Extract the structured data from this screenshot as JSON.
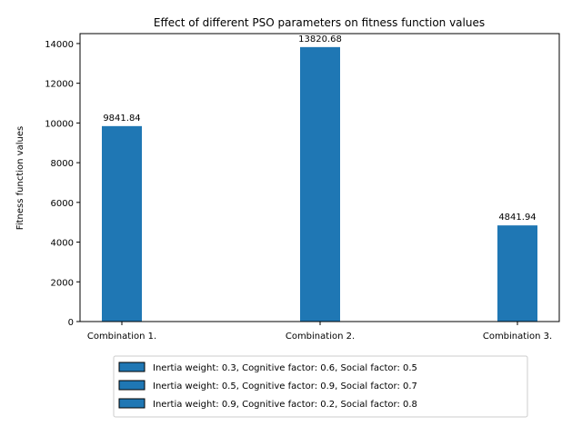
{
  "chart_data": {
    "type": "bar",
    "title": "Effect of different PSO parameters on fitness function values",
    "xlabel": "",
    "ylabel": "Fitness function values",
    "categories": [
      "Combination 1.",
      "Combination 2.",
      "Combination 3."
    ],
    "values": [
      9841.84,
      13820.68,
      4841.94
    ],
    "data_labels": [
      "9841.84",
      "13820.68",
      "4841.94"
    ],
    "ylim": [
      0,
      14500
    ],
    "yticks": [
      0,
      2000,
      4000,
      6000,
      8000,
      10000,
      12000,
      14000
    ],
    "ytick_labels": [
      "0",
      "2000",
      "4000",
      "6000",
      "8000",
      "10000",
      "12000",
      "14000"
    ],
    "bar_color": "#1f77b4",
    "grid": false,
    "legend_position": "bottom-center",
    "legend": [
      "Inertia weight: 0.3, Cognitive factor: 0.6, Social factor: 0.5",
      "Inertia weight: 0.5, Cognitive factor: 0.9, Social factor: 0.7",
      "Inertia weight: 0.9, Cognitive factor: 0.2, Social factor: 0.8"
    ]
  }
}
